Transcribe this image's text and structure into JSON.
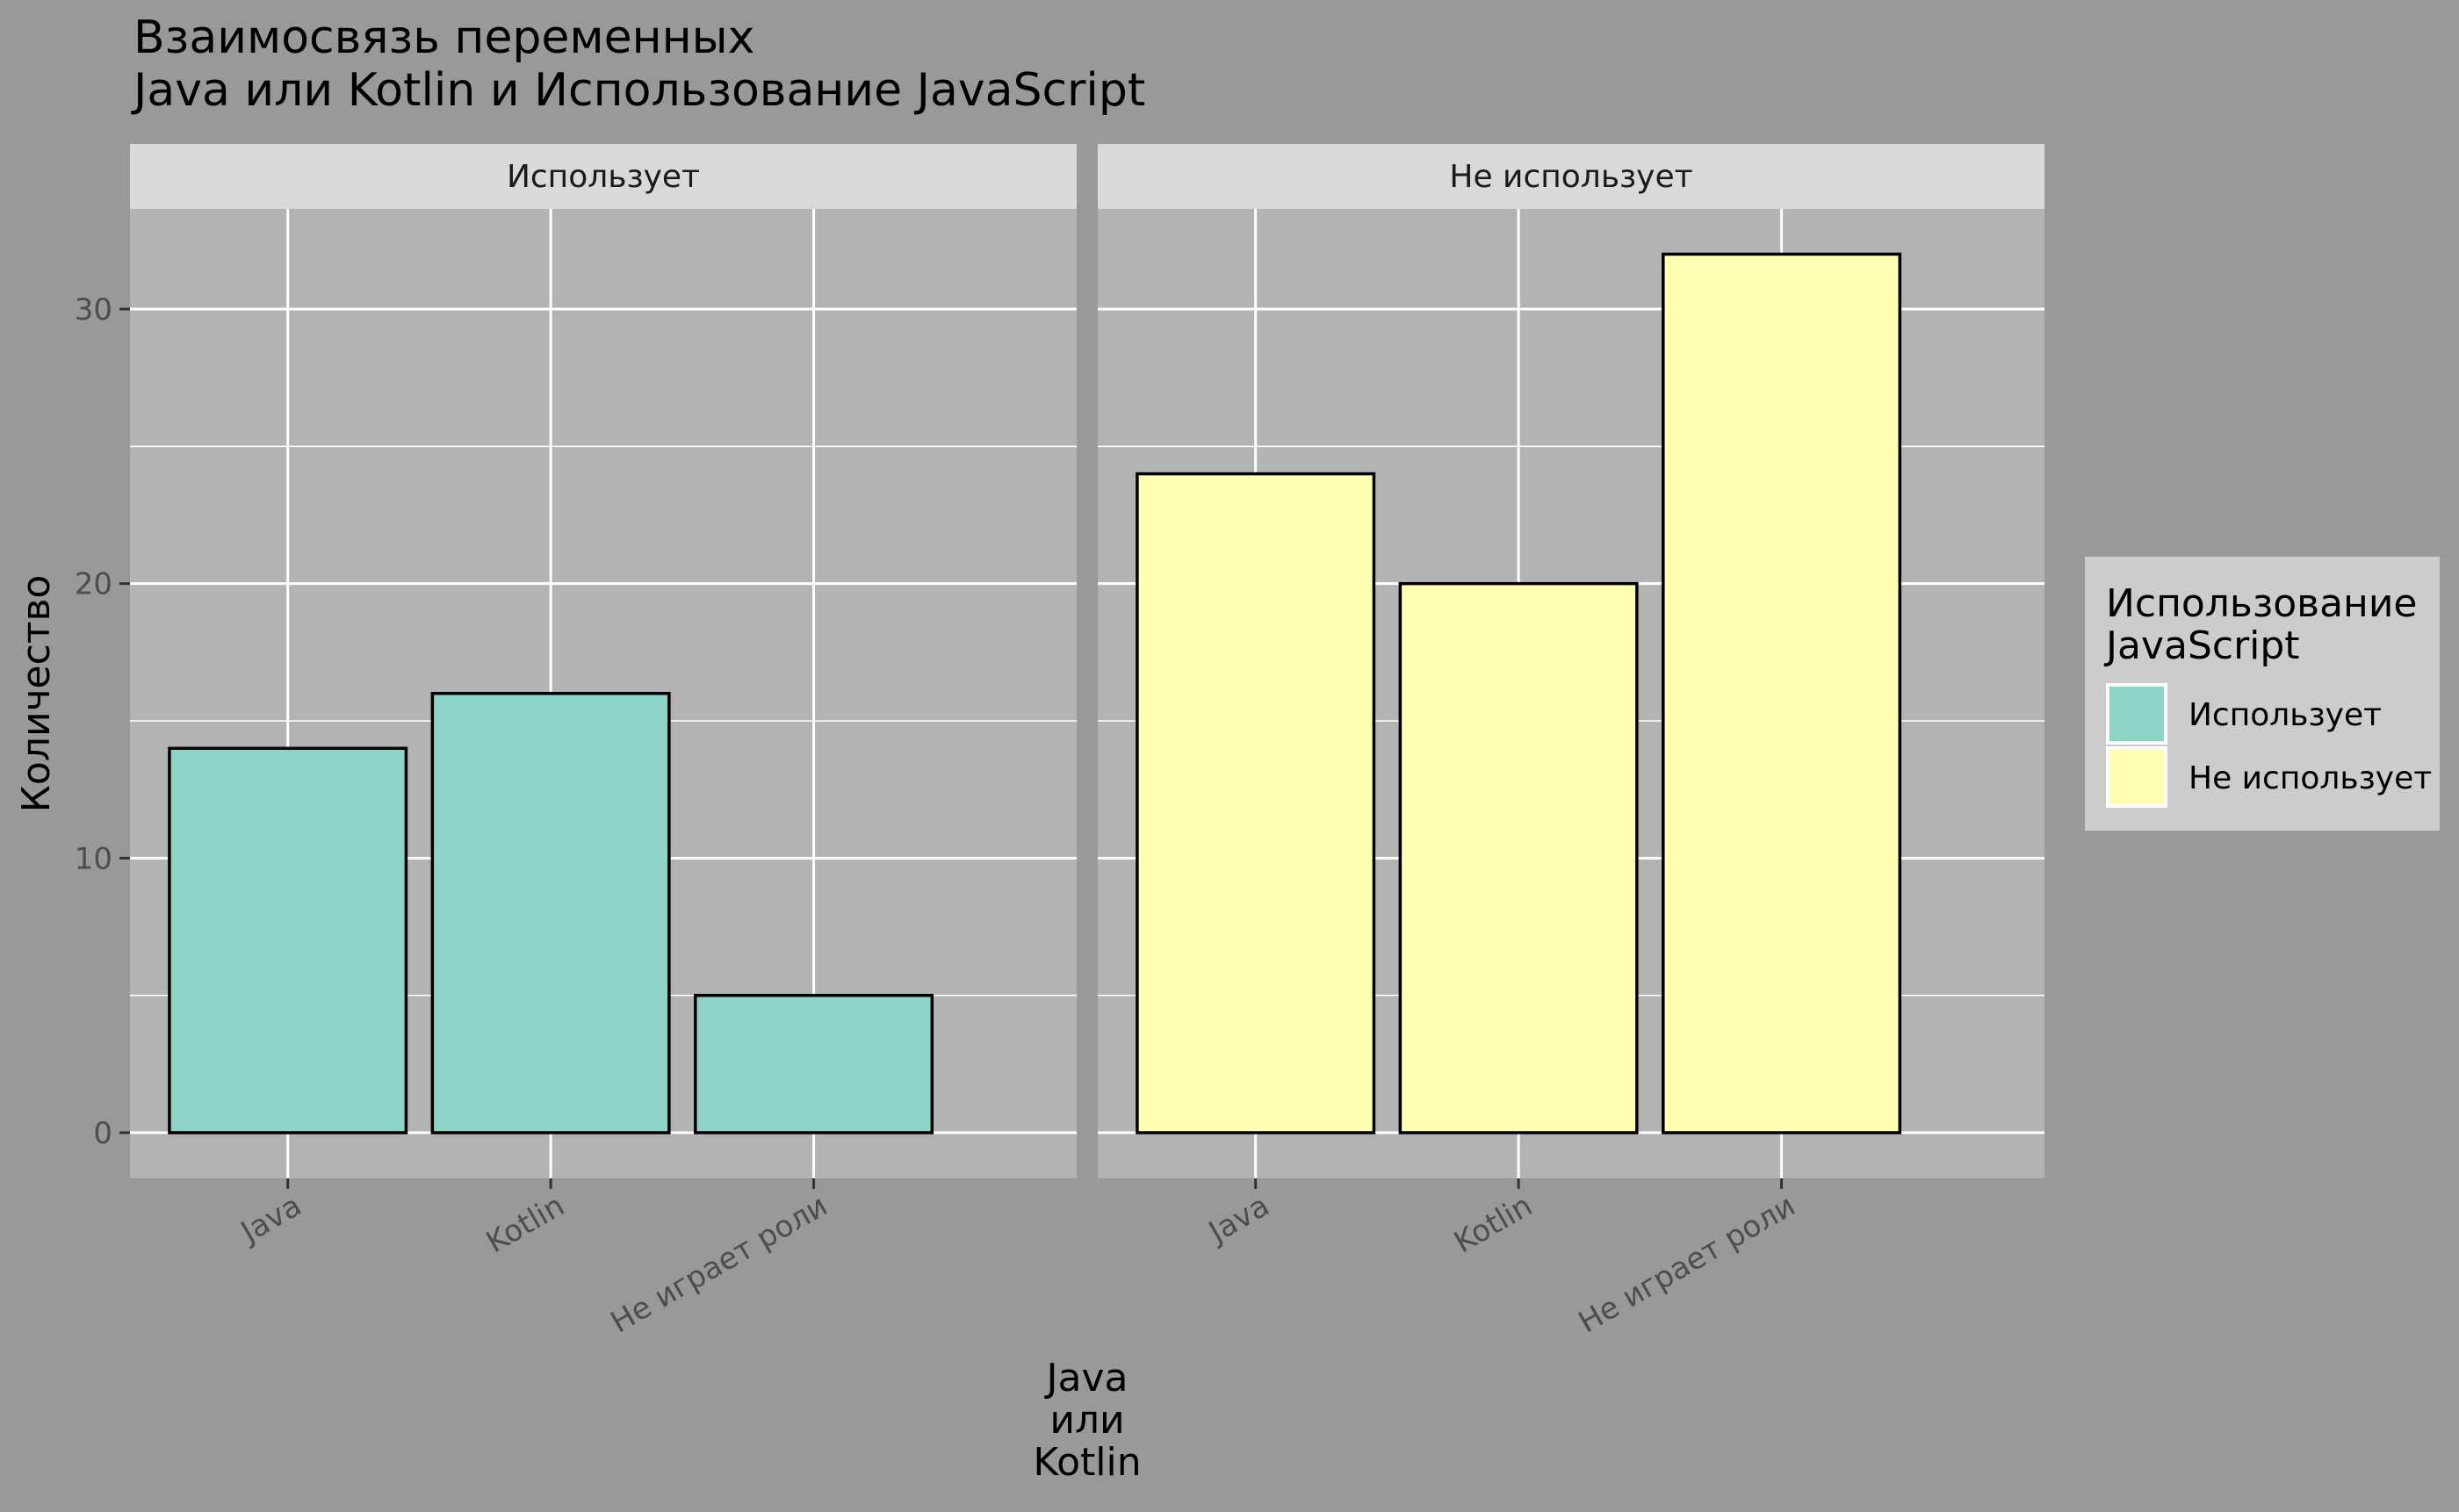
{
  "chart_data": {
    "type": "bar",
    "title": "Взаимосвязь переменных\n Java или Kotlin и Использование JavaScript",
    "xlabel": "Java\nили\nKotlin",
    "ylabel": "Количество",
    "ylim": [
      0,
      34
    ],
    "yticks": [
      0,
      10,
      20,
      30
    ],
    "grid": true,
    "legend": {
      "title": "Использование\nJavaScript",
      "position": "right",
      "entries": [
        {
          "label": "Использует",
          "color": "#8DD3C7"
        },
        {
          "label": "Не использует",
          "color": "#FFFFB3"
        }
      ]
    },
    "panels": [
      {
        "label": "Использует",
        "color": "#8DD3C7",
        "categories": [
          "Java",
          "Kotlin",
          "Не играет роли"
        ],
        "values": [
          14,
          16,
          5
        ]
      },
      {
        "label": "Не использует",
        "color": "#FFFFB3",
        "categories": [
          "Java",
          "Kotlin",
          "Не играет роли"
        ],
        "values": [
          24,
          20,
          32
        ]
      }
    ]
  },
  "colors": {
    "page_background": "#999999",
    "panel_background": "#B3B3B3",
    "strip_background": "#D9D9D9",
    "legend_background": "#CCCCCC",
    "gridline": "#FFFFFF",
    "tick_label": "#4D4D4D"
  }
}
